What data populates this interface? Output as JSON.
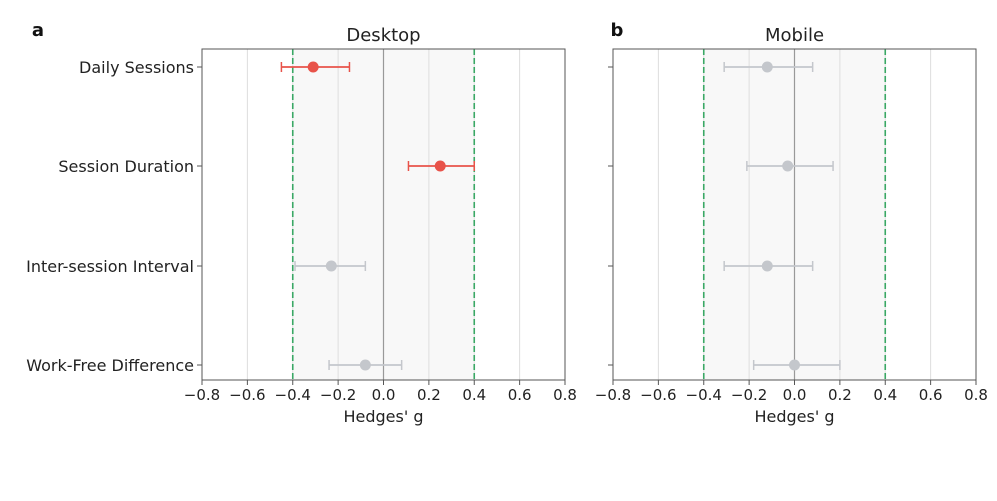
{
  "figure": {
    "colors": {
      "significant": "#e8534a",
      "nonsignificant": "#c4c7cc",
      "equivalence_bound": "#3aa865",
      "zero_line": "#999999",
      "band_fill": "#f8f8f8",
      "grid": "#dddddd"
    }
  },
  "chart_data": [
    {
      "type": "scatter",
      "panel_letter": "a",
      "title": "Desktop",
      "xlabel": "Hedges' g",
      "ylabel": "",
      "xlim": [
        -0.8,
        0.8
      ],
      "xticks": [
        -0.8,
        -0.6,
        -0.4,
        -0.2,
        0.0,
        0.2,
        0.4,
        0.6,
        0.8
      ],
      "xtick_labels": [
        "−0.8",
        "−0.6",
        "−0.4",
        "−0.2",
        "0.0",
        "0.2",
        "0.4",
        "0.6",
        "0.8"
      ],
      "equivalence_bounds": [
        -0.4,
        0.4
      ],
      "grid": "vertical",
      "categories": [
        "Daily Sessions",
        "Session Duration",
        "Inter-session Interval",
        "Work-Free Difference"
      ],
      "points": [
        {
          "category": "Daily Sessions",
          "g": -0.31,
          "ci": [
            -0.45,
            -0.15
          ],
          "significant": true
        },
        {
          "category": "Session Duration",
          "g": 0.25,
          "ci": [
            0.11,
            0.4
          ],
          "significant": true
        },
        {
          "category": "Inter-session Interval",
          "g": -0.23,
          "ci": [
            -0.39,
            -0.08
          ],
          "significant": false
        },
        {
          "category": "Work-Free Difference",
          "g": -0.08,
          "ci": [
            -0.24,
            0.08
          ],
          "significant": false
        }
      ]
    },
    {
      "type": "scatter",
      "panel_letter": "b",
      "title": "Mobile",
      "xlabel": "Hedges' g",
      "ylabel": "",
      "xlim": [
        -0.8,
        0.8
      ],
      "xticks": [
        -0.8,
        -0.6,
        -0.4,
        -0.2,
        0.0,
        0.2,
        0.4,
        0.6,
        0.8
      ],
      "xtick_labels": [
        "−0.8",
        "−0.6",
        "−0.4",
        "−0.2",
        "0.0",
        "0.2",
        "0.4",
        "0.6",
        "0.8"
      ],
      "equivalence_bounds": [
        -0.4,
        0.4
      ],
      "grid": "vertical",
      "categories": [
        "Daily Sessions",
        "Session Duration",
        "Inter-session Interval",
        "Work-Free Difference"
      ],
      "points": [
        {
          "category": "Daily Sessions",
          "g": -0.12,
          "ci": [
            -0.31,
            0.08
          ],
          "significant": false
        },
        {
          "category": "Session Duration",
          "g": -0.03,
          "ci": [
            -0.21,
            0.17
          ],
          "significant": false
        },
        {
          "category": "Inter-session Interval",
          "g": -0.12,
          "ci": [
            -0.31,
            0.08
          ],
          "significant": false
        },
        {
          "category": "Work-Free Difference",
          "g": 0.0,
          "ci": [
            -0.18,
            0.2
          ],
          "significant": false
        }
      ]
    }
  ]
}
